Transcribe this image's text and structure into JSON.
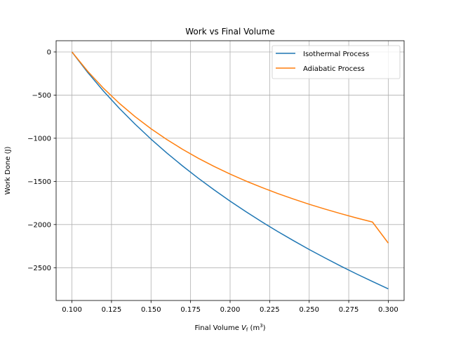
{
  "chart_data": {
    "type": "line",
    "title": "Work vs Final Volume",
    "xlabel": "Final Volume V_f (m³)",
    "xlabel_parts": {
      "prefix": "Final Volume ",
      "var": "V",
      "sub": "f",
      "unit_open": " (m",
      "sup": "3",
      "unit_close": ")"
    },
    "ylabel": "Work Done (J)",
    "xlim": [
      0.09,
      0.31
    ],
    "ylim": [
      -2880,
      130
    ],
    "xticks": [
      0.1,
      0.125,
      0.15,
      0.175,
      0.2,
      0.225,
      0.25,
      0.275,
      0.3
    ],
    "xtick_labels": [
      "0.100",
      "0.125",
      "0.150",
      "0.175",
      "0.200",
      "0.225",
      "0.250",
      "0.275",
      "0.300"
    ],
    "yticks": [
      0,
      -500,
      -1000,
      -1500,
      -2000,
      -2500
    ],
    "ytick_labels": [
      "0",
      "−500",
      "−1000",
      "−1500",
      "−2000",
      "−2500"
    ],
    "grid": true,
    "legend_position": "top-right",
    "series": [
      {
        "name": "Isothermal Process",
        "color": "#1f77b4",
        "x": [
          0.1,
          0.11,
          0.12,
          0.13,
          0.14,
          0.15,
          0.16,
          0.17,
          0.18,
          0.19,
          0.2,
          0.21,
          0.22,
          0.23,
          0.24,
          0.25,
          0.26,
          0.27,
          0.28,
          0.29,
          0.3
        ],
        "y": [
          0,
          -238,
          -455,
          -654,
          -838,
          -1010,
          -1171,
          -1322,
          -1465,
          -1600,
          -1729,
          -1851,
          -1968,
          -2080,
          -2186,
          -2289,
          -2387,
          -2482,
          -2573,
          -2660,
          -2745
        ]
      },
      {
        "name": "Adiabatic Process",
        "color": "#ff7f0e",
        "x": [
          0.1,
          0.11,
          0.12,
          0.13,
          0.14,
          0.15,
          0.16,
          0.17,
          0.18,
          0.19,
          0.2,
          0.21,
          0.22,
          0.23,
          0.24,
          0.25,
          0.26,
          0.27,
          0.28,
          0.29,
          0.3
        ],
        "y": [
          0,
          -225,
          -422,
          -596,
          -751,
          -890,
          -1015,
          -1129,
          -1233,
          -1328,
          -1415,
          -1496,
          -1570,
          -1640,
          -1704,
          -1765,
          -1821,
          -1874,
          -1924,
          -1971,
          -2215
        ]
      }
    ]
  }
}
